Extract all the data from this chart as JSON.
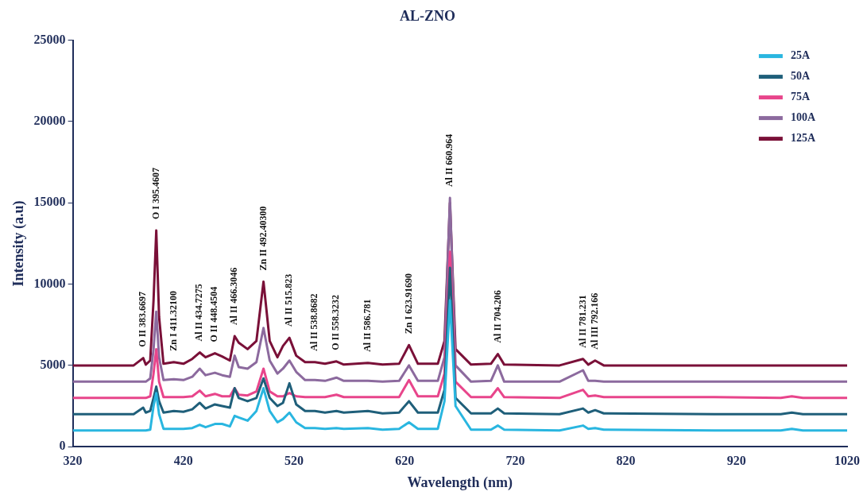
{
  "chart_data": {
    "type": "line",
    "title": "AL-ZNO",
    "xlabel": "Wavelength (nm)",
    "ylabel": "Intensity (a.u)",
    "x": [
      320,
      375,
      383.67,
      386,
      390,
      393,
      395.46,
      398,
      402,
      411.32,
      420,
      428,
      434.73,
      440,
      448.45,
      455,
      462,
      466.3,
      470,
      478,
      486,
      492.4,
      498,
      505,
      510,
      515.82,
      522,
      530,
      538.87,
      548,
      558.32,
      565,
      586.78,
      600,
      615,
      623.92,
      632,
      650,
      656,
      660.96,
      666,
      680,
      698,
      704.21,
      710,
      760,
      781.23,
      786,
      792.17,
      800,
      900,
      960,
      970,
      980,
      1020
    ],
    "series": [
      {
        "name": "25A",
        "color": "#29b6e0",
        "values": [
          1000,
          1000,
          1000,
          1000,
          1050,
          2500,
          3300,
          2000,
          1100,
          1100,
          1100,
          1150,
          1350,
          1200,
          1400,
          1400,
          1250,
          1900,
          1800,
          1600,
          2200,
          3600,
          2200,
          1500,
          1700,
          2100,
          1500,
          1150,
          1150,
          1100,
          1150,
          1100,
          1150,
          1050,
          1100,
          1500,
          1100,
          1100,
          2800,
          9000,
          2500,
          1050,
          1050,
          1300,
          1050,
          1000,
          1300,
          1100,
          1150,
          1050,
          1000,
          1000,
          1100,
          1000,
          1000
        ]
      },
      {
        "name": "50A",
        "color": "#1f5f7a",
        "values": [
          2000,
          2000,
          2400,
          2100,
          2200,
          3000,
          3700,
          2800,
          2100,
          2200,
          2150,
          2300,
          2700,
          2350,
          2600,
          2500,
          2400,
          3600,
          3000,
          2800,
          3000,
          4200,
          3000,
          2500,
          2700,
          3900,
          2600,
          2200,
          2200,
          2100,
          2200,
          2100,
          2200,
          2050,
          2100,
          2800,
          2100,
          2100,
          3500,
          11000,
          3000,
          2050,
          2050,
          2350,
          2050,
          2000,
          2350,
          2100,
          2250,
          2050,
          2000,
          2000,
          2100,
          2000,
          2000
        ]
      },
      {
        "name": "75A",
        "color": "#e8458b",
        "values": [
          3000,
          3000,
          3000,
          3000,
          3100,
          4500,
          6000,
          4000,
          3050,
          3050,
          3050,
          3100,
          3450,
          3100,
          3250,
          3100,
          3100,
          3600,
          3200,
          3150,
          3400,
          4800,
          3400,
          3100,
          3100,
          3300,
          3100,
          3050,
          3050,
          3050,
          3200,
          3050,
          3050,
          3050,
          3050,
          4100,
          3100,
          3100,
          4500,
          12000,
          4000,
          3050,
          3050,
          3600,
          3050,
          3000,
          3500,
          3100,
          3150,
          3050,
          3050,
          3000,
          3100,
          3000,
          3000
        ]
      },
      {
        "name": "100A",
        "color": "#8c6a9e",
        "values": [
          4000,
          4000,
          4000,
          4000,
          4200,
          6000,
          8300,
          5500,
          4100,
          4150,
          4100,
          4300,
          4800,
          4400,
          4550,
          4400,
          4300,
          5600,
          4900,
          4800,
          5200,
          7300,
          5300,
          4500,
          4800,
          5300,
          4600,
          4100,
          4100,
          4050,
          4250,
          4050,
          4050,
          4000,
          4050,
          5000,
          4050,
          4050,
          5500,
          15300,
          5000,
          4000,
          4050,
          5000,
          4000,
          4000,
          4700,
          4050,
          4050,
          4000,
          4000,
          4000,
          4000,
          4000,
          4000
        ]
      },
      {
        "name": "125A",
        "color": "#7a1038",
        "values": [
          5000,
          5000,
          5450,
          5050,
          5300,
          9000,
          13300,
          8000,
          5100,
          5200,
          5100,
          5400,
          5800,
          5500,
          5750,
          5550,
          5300,
          6800,
          6400,
          6000,
          6500,
          10150,
          6500,
          5500,
          6200,
          6700,
          5600,
          5200,
          5200,
          5100,
          5250,
          5050,
          5150,
          5050,
          5100,
          6250,
          5100,
          5100,
          6500,
          15000,
          6000,
          5050,
          5100,
          5700,
          5050,
          5000,
          5400,
          5050,
          5300,
          5000,
          5000,
          5000,
          5000,
          5000,
          5000
        ]
      }
    ],
    "xlim": [
      320,
      1020
    ],
    "xticks": [
      320,
      420,
      520,
      620,
      720,
      820,
      920,
      1020
    ],
    "ylim": [
      0,
      25000
    ],
    "yticks": [
      0,
      5000,
      10000,
      15000,
      20000,
      25000
    ],
    "grid": false,
    "legend": "top right",
    "marker": "none",
    "line_style": "solid",
    "annotations": [
      {
        "text": "O II 383.6697",
        "x": 383.67,
        "y": 5450
      },
      {
        "text": "O I 395.4607",
        "x": 395.46,
        "y": 13300
      },
      {
        "text": "Zn I 411.32100",
        "x": 411.32,
        "y": 5200
      },
      {
        "text": "Al II 434.7275",
        "x": 434.73,
        "y": 5800
      },
      {
        "text": "O II 448.4504",
        "x": 448.45,
        "y": 5750
      },
      {
        "text": "Al II 466.3046",
        "x": 466.3,
        "y": 6800
      },
      {
        "text": "Zn II 492.40300",
        "x": 492.4,
        "y": 10150
      },
      {
        "text": "Al II 515.823",
        "x": 515.82,
        "y": 6700
      },
      {
        "text": "Al II 538.8682",
        "x": 538.87,
        "y": 5200
      },
      {
        "text": "O II 558.3232",
        "x": 558.32,
        "y": 5250
      },
      {
        "text": "Al II 586.781",
        "x": 586.78,
        "y": 5150
      },
      {
        "text": "Zn I 623.91690",
        "x": 623.92,
        "y": 6250
      },
      {
        "text": "Al II 660.964",
        "x": 660.96,
        "y": 15300
      },
      {
        "text": "Al II 704.206",
        "x": 704.21,
        "y": 5700
      },
      {
        "text": "Al II 781.231",
        "x": 781.23,
        "y": 5400
      },
      {
        "text": "Al III 792.166",
        "x": 792.17,
        "y": 5300
      }
    ]
  }
}
